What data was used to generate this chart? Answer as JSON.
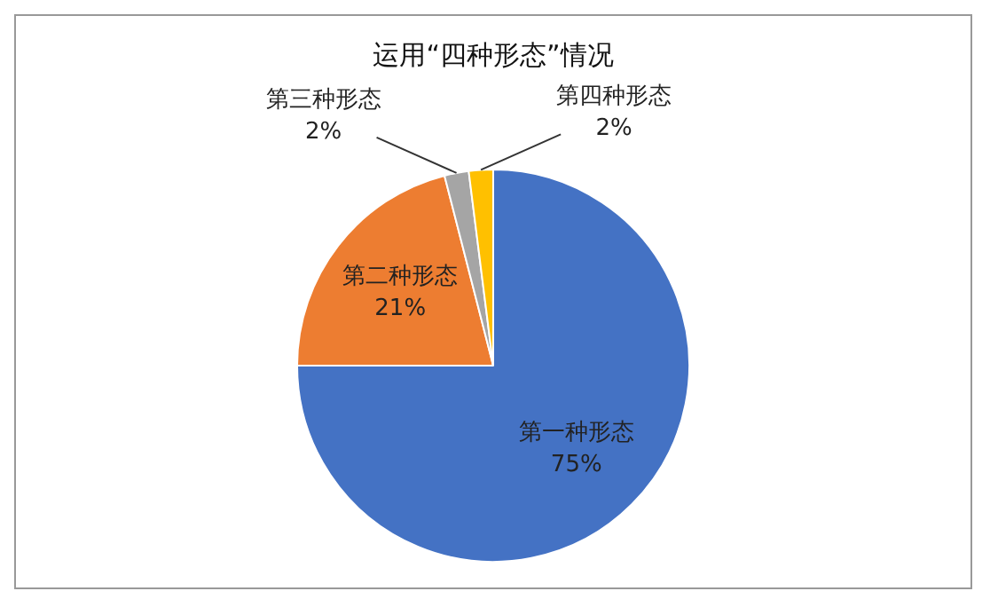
{
  "chart_data": {
    "type": "pie",
    "title": "运用“四种形态”情况",
    "categories": [
      "第一种形态",
      "第二种形态",
      "第三种形态",
      "第四种形态"
    ],
    "values": [
      75,
      21,
      2,
      2
    ],
    "colors": [
      "#4472c4",
      "#ed7d31",
      "#a5a5a5",
      "#ffc000"
    ],
    "value_labels": [
      "75%",
      "21%",
      "2%",
      "2%"
    ],
    "legend": false
  }
}
